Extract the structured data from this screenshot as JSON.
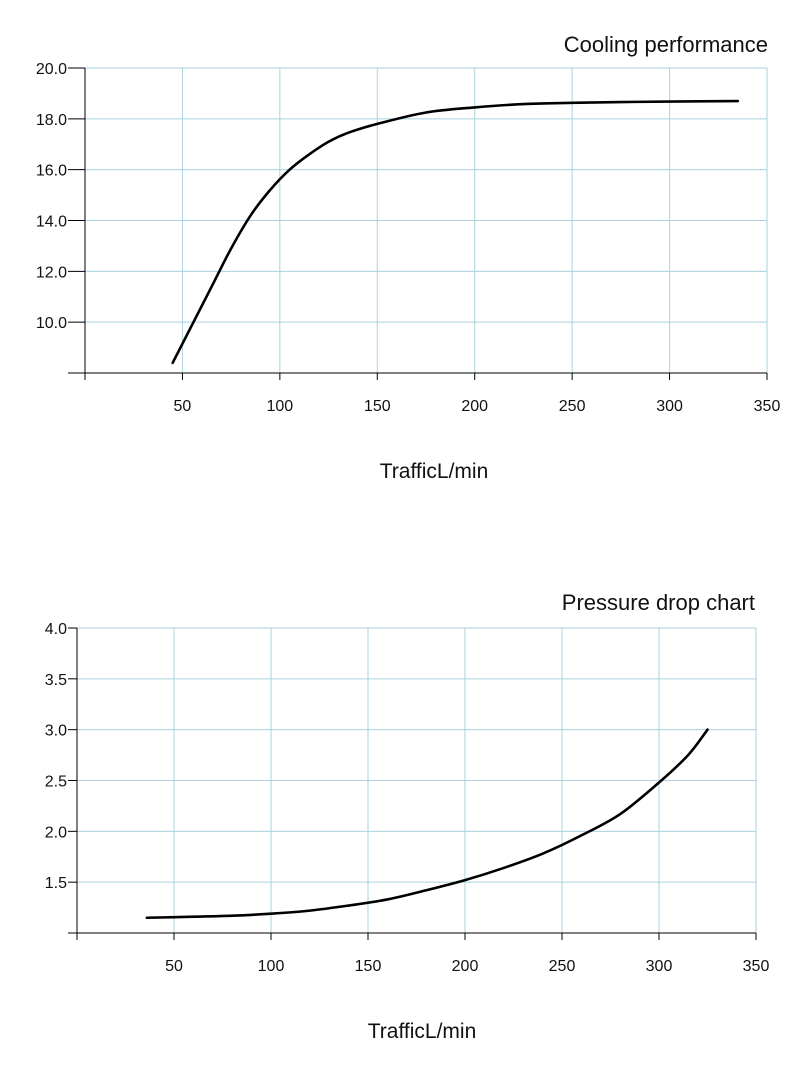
{
  "chart_data": [
    {
      "type": "line",
      "title": "Cooling performance",
      "xlabel": "TrafficL/min",
      "ylabel": "",
      "xlim": [
        0,
        350
      ],
      "ylim": [
        8,
        20
      ],
      "x_ticks": [
        50,
        100,
        150,
        200,
        250,
        300,
        350
      ],
      "y_ticks": [
        10.0,
        12.0,
        14.0,
        16.0,
        18.0,
        20.0
      ],
      "x_tick_labels": [
        "50",
        "100",
        "150",
        "200",
        "250",
        "300",
        "350"
      ],
      "y_tick_labels": [
        "10.0",
        "12.0",
        "14.0",
        "16.0",
        "18.0",
        "20.0"
      ],
      "grid": true,
      "series": [
        {
          "x": [
            45,
            55,
            65,
            75,
            85,
            95,
            105,
            115,
            125,
            135,
            150,
            175,
            200,
            225,
            250,
            275,
            300,
            335
          ],
          "y": [
            8.4,
            9.9,
            11.4,
            12.9,
            14.2,
            15.2,
            16.0,
            16.6,
            17.1,
            17.45,
            17.8,
            18.25,
            18.45,
            18.58,
            18.63,
            18.66,
            18.68,
            18.7
          ]
        }
      ]
    },
    {
      "type": "line",
      "title": "Pressure drop chart",
      "xlabel": "TrafficL/min",
      "ylabel": "",
      "xlim": [
        0,
        350
      ],
      "ylim": [
        1.0,
        4.0
      ],
      "x_ticks": [
        50,
        100,
        150,
        200,
        250,
        300,
        350
      ],
      "y_ticks": [
        1.5,
        2.0,
        2.5,
        3.0,
        3.5,
        4.0
      ],
      "x_tick_labels": [
        "50",
        "100",
        "150",
        "200",
        "250",
        "300",
        "350"
      ],
      "y_tick_labels": [
        "1.5",
        "2.0",
        "2.5",
        "3.0",
        "3.5",
        "4.0"
      ],
      "grid": true,
      "series": [
        {
          "x": [
            36,
            60,
            80,
            100,
            120,
            140,
            160,
            180,
            200,
            220,
            240,
            260,
            280,
            300,
            315,
            325
          ],
          "y": [
            1.15,
            1.16,
            1.17,
            1.19,
            1.22,
            1.27,
            1.33,
            1.42,
            1.52,
            1.64,
            1.78,
            1.96,
            2.17,
            2.48,
            2.75,
            3.0
          ]
        }
      ]
    }
  ]
}
